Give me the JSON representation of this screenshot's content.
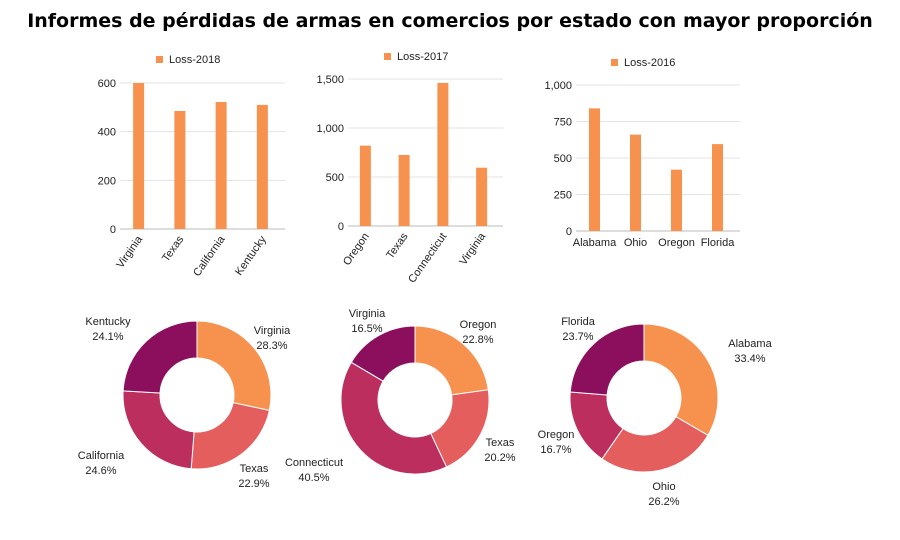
{
  "title": "Informes de pérdidas de armas en comercios por estado con mayor proporción",
  "colors": {
    "bar": "#F7924E",
    "grid": "#e3e3e3",
    "axis": "#bbbbbb",
    "pie": [
      "#F7924E",
      "#E45E5E",
      "#BC2E5D",
      "#8C0F5D"
    ]
  },
  "chart_data": [
    {
      "type": "bar",
      "legend": "Loss-2018",
      "categories": [
        "Virginia",
        "Texas",
        "California",
        "Kentucky"
      ],
      "values": [
        600,
        485,
        522,
        510
      ],
      "ylim": [
        0,
        600
      ],
      "yticks": [
        0,
        200,
        400,
        600
      ],
      "ytick_labels": [
        "0",
        "200",
        "400",
        "600"
      ],
      "rotated_labels": true
    },
    {
      "type": "bar",
      "legend": "Loss-2017",
      "categories": [
        "Oregon",
        "Texas",
        "Connecticut",
        "Virginia"
      ],
      "values": [
        820,
        725,
        1460,
        595
      ],
      "ylim": [
        0,
        1500
      ],
      "yticks": [
        0,
        500,
        1000,
        1500
      ],
      "ytick_labels": [
        "0",
        "500",
        "1,000",
        "1,500"
      ],
      "rotated_labels": true
    },
    {
      "type": "bar",
      "legend": "Loss-2016",
      "categories": [
        "Alabama",
        "Ohio",
        "Oregon",
        "Florida"
      ],
      "values": [
        840,
        660,
        420,
        595
      ],
      "ylim": [
        0,
        1000
      ],
      "yticks": [
        0,
        250,
        500,
        750,
        1000
      ],
      "ytick_labels": [
        "0",
        "250",
        "500",
        "750",
        "1,000"
      ],
      "rotated_labels": false
    },
    {
      "type": "pie",
      "donut": true,
      "slices": [
        {
          "label": "Virginia",
          "value": 28.3,
          "text": "28.3%"
        },
        {
          "label": "Texas",
          "value": 22.9,
          "text": "22.9%"
        },
        {
          "label": "California",
          "value": 24.6,
          "text": "24.6%"
        },
        {
          "label": "Kentucky",
          "value": 24.1,
          "text": "24.1%"
        }
      ]
    },
    {
      "type": "pie",
      "donut": true,
      "slices": [
        {
          "label": "Oregon",
          "value": 22.8,
          "text": "22.8%"
        },
        {
          "label": "Texas",
          "value": 20.2,
          "text": "20.2%"
        },
        {
          "label": "Connecticut",
          "value": 40.5,
          "text": "40.5%"
        },
        {
          "label": "Virginia",
          "value": 16.5,
          "text": "16.5%"
        }
      ]
    },
    {
      "type": "pie",
      "donut": true,
      "slices": [
        {
          "label": "Alabama",
          "value": 33.4,
          "text": "33.4%"
        },
        {
          "label": "Ohio",
          "value": 26.2,
          "text": "26.2%"
        },
        {
          "label": "Oregon",
          "value": 16.7,
          "text": "16.7%"
        },
        {
          "label": "Florida",
          "value": 23.7,
          "text": "23.7%"
        }
      ]
    }
  ]
}
